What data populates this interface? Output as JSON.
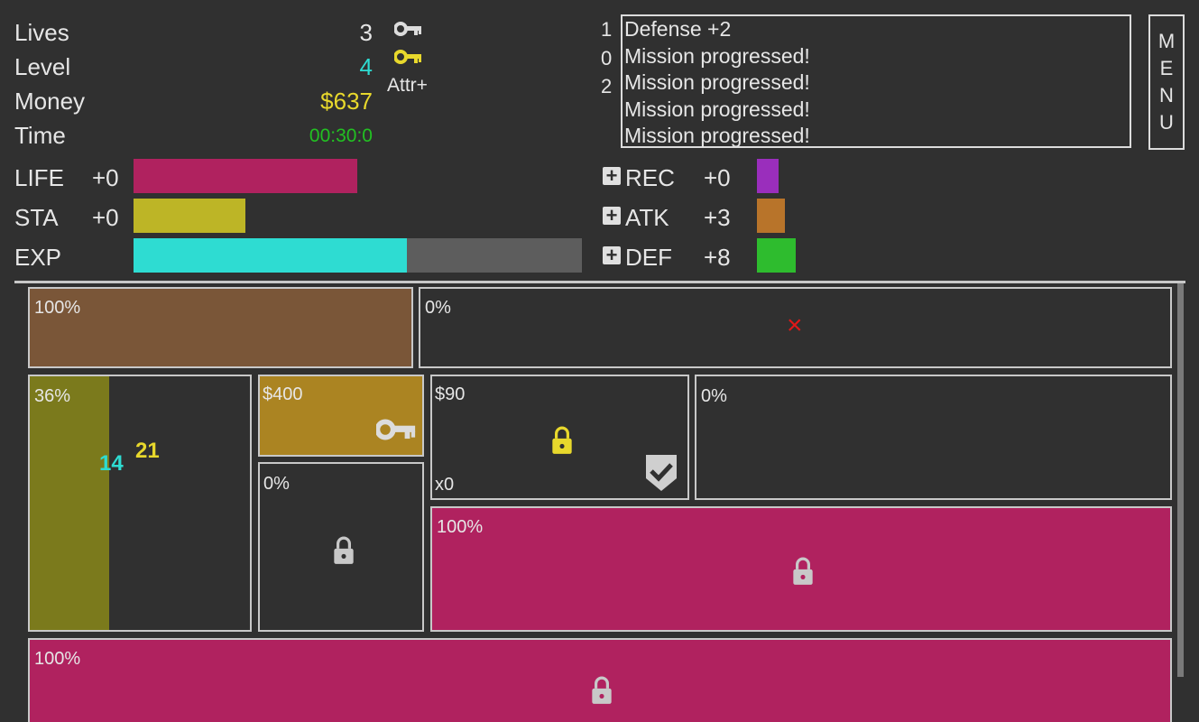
{
  "stats": {
    "lives_label": "Lives",
    "lives_value": "3",
    "level_label": "Level",
    "level_value": "4",
    "money_label": "Money",
    "money_value": "$637",
    "time_label": "Time",
    "time_value": "00:30:0",
    "attr_label": "Attr+"
  },
  "bars": [
    {
      "label": "LIFE",
      "plus": "+0",
      "color": "#b0225f",
      "fill": 1.0
    },
    {
      "label": "STA",
      "plus": "+0",
      "color": "#bdb526",
      "fill": 1.0
    },
    {
      "label": "EXP",
      "plus": "",
      "color": "#2edcd2",
      "fill": 0.61,
      "track_color": "#5d5d5d"
    }
  ],
  "attrs": [
    {
      "label": "REC",
      "value": "+0",
      "color": "#9a2ebc"
    },
    {
      "label": "ATK",
      "value": "+3",
      "color": "#b8742a"
    },
    {
      "label": "DEF",
      "value": "+8",
      "color": "#2ebc2e"
    }
  ],
  "log": {
    "counters": [
      "1",
      "0",
      "2"
    ],
    "lines": [
      "Defense +2",
      "Mission progressed!",
      "Mission progressed!",
      "Mission progressed!",
      "Mission progressed!"
    ]
  },
  "menu": {
    "letters": [
      "M",
      "E",
      "N",
      "U"
    ]
  },
  "grid": {
    "cell_a": {
      "text": "100%",
      "color": "#7a5638"
    },
    "cell_b": {
      "text": "0%",
      "mark": "×",
      "mark_color": "#e01818"
    },
    "cell_c": {
      "text": "36%",
      "fill": 0.36,
      "color": "#7b7a1c",
      "num1": "14",
      "num1_color": "#2edcd2",
      "num2": "21",
      "num2_color": "#e8d82c"
    },
    "cell_d": {
      "text": "$400",
      "color": "#ab8422"
    },
    "cell_e": {
      "text": "$90",
      "count": "x0"
    },
    "cell_f": {
      "text": "0%"
    },
    "cell_g": {
      "text": "0%"
    },
    "cell_h": {
      "text": "100%",
      "color": "#b0225f"
    },
    "cell_i": {
      "text": "100%",
      "color": "#b0225f"
    }
  },
  "colors": {
    "background": "#303030",
    "level": "#2edcd2",
    "money": "#e8d82c",
    "time": "#22c022",
    "key_gold": "#e8d82c",
    "key_gray": "#dcdcdc",
    "lock_gold": "#e8d82c",
    "lock_gray": "#c8c8c8"
  },
  "icons": {
    "key_1": "key-icon",
    "key_2": "key-icon",
    "lock": "lock-icon",
    "shield": "shield-check-icon",
    "plus": "plus-box-icon",
    "close": "close-icon"
  }
}
